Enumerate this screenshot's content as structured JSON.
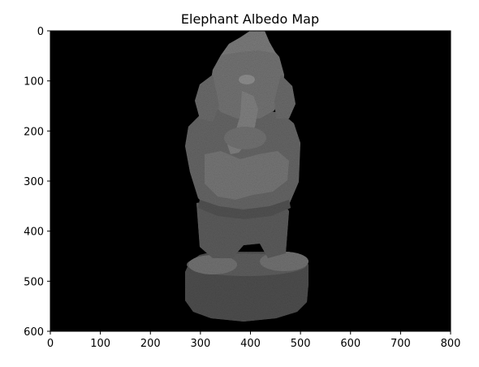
{
  "figure": {
    "title": "Elephant Albedo Map",
    "image": {
      "subject": "ganesha-statue",
      "background_color": "#000000",
      "statue_tone": "#6a6a6a"
    }
  },
  "chart_data": {
    "type": "heatmap",
    "title": "Elephant Albedo Map",
    "xlim": [
      0,
      800
    ],
    "ylim": [
      600,
      0
    ],
    "x_ticks": [
      0,
      100,
      200,
      300,
      400,
      500,
      600,
      700,
      800
    ],
    "y_ticks": [
      0,
      100,
      200,
      300,
      400,
      500,
      600
    ],
    "x_tick_labels": [
      "0",
      "100",
      "200",
      "300",
      "400",
      "500",
      "600",
      "700",
      "800"
    ],
    "y_tick_labels": [
      "0",
      "100",
      "200",
      "300",
      "400",
      "500",
      "600"
    ],
    "grid": false,
    "colormap": "gray"
  }
}
